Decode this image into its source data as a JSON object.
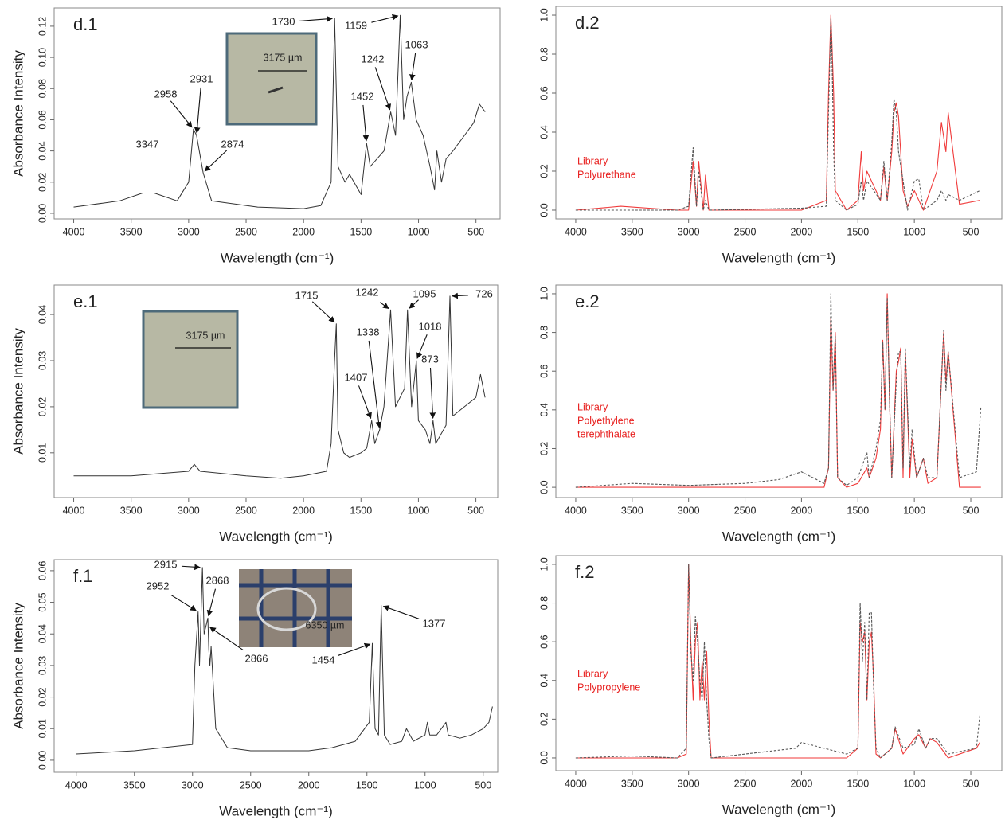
{
  "chart_data": [
    {
      "type": "line",
      "label": "d.1",
      "xlabel": "Wavelength (cm⁻¹)",
      "ylabel": "Absorbance Intensity",
      "inset_scale": "3175 µm",
      "xlim": [
        4170,
        290
      ],
      "ylim": [
        -0.0036,
        0.1317
      ],
      "xticks": [
        4000,
        3500,
        3000,
        2500,
        2000,
        1500,
        1000,
        500
      ],
      "yticks": [
        {
          "value": 0,
          "label": "0.00"
        },
        {
          "value": 0.02,
          "label": "0.02"
        },
        {
          "value": 0.04,
          "label": "0.04"
        },
        {
          "value": 0.06,
          "label": "0.06"
        },
        {
          "value": 0.08,
          "label": "0.08"
        },
        {
          "value": 0.1,
          "label": "0.10"
        },
        {
          "value": 0.12,
          "label": "0.12"
        }
      ],
      "x": [
        4000,
        3600,
        3400,
        3300,
        3100,
        3000,
        2958,
        2931,
        2874,
        2800,
        2400,
        2000,
        1850,
        1760,
        1730,
        1700,
        1640,
        1600,
        1500,
        1452,
        1420,
        1300,
        1242,
        1200,
        1159,
        1130,
        1100,
        1063,
        1020,
        960,
        900,
        860,
        840,
        800,
        760,
        700,
        600,
        520,
        470,
        420
      ],
      "color": "#333333",
      "values": [
        0.004,
        0.008,
        0.013,
        0.013,
        0.008,
        0.02,
        0.054,
        0.05,
        0.026,
        0.008,
        0.004,
        0.003,
        0.005,
        0.02,
        0.125,
        0.03,
        0.02,
        0.025,
        0.012,
        0.045,
        0.03,
        0.04,
        0.065,
        0.05,
        0.127,
        0.06,
        0.075,
        0.084,
        0.06,
        0.05,
        0.03,
        0.015,
        0.04,
        0.02,
        0.035,
        0.04,
        0.05,
        0.058,
        0.07,
        0.065
      ],
      "peak_labels": [
        1730,
        1159,
        1242,
        1063,
        1452,
        2958,
        2931,
        2874,
        3347
      ]
    },
    {
      "type": "line",
      "label": "d.2",
      "xlabel": "Wavelength (cm⁻¹)",
      "library_label": [
        "Library",
        "Polyurethane"
      ],
      "xlim": [
        4176,
        225
      ],
      "ylim": [
        -0.045,
        1.045
      ],
      "xticks": [
        4000,
        3500,
        3000,
        2500,
        2000,
        1500,
        1000,
        500
      ],
      "yticks": [
        {
          "value": 0,
          "label": "0.0"
        },
        0.2,
        0.4,
        0.6,
        0.8,
        {
          "value": 1,
          "label": "1.0"
        }
      ],
      "x": [
        4000,
        3600,
        3100,
        3000,
        2960,
        2930,
        2910,
        2870,
        2850,
        2820,
        2000,
        1780,
        1760,
        1740,
        1730,
        1715,
        1700,
        1600,
        1500,
        1470,
        1450,
        1420,
        1300,
        1270,
        1240,
        1200,
        1180,
        1160,
        1140,
        1100,
        1060,
        1000,
        960,
        920,
        800,
        760,
        720,
        700,
        600,
        420
      ],
      "series": [
        {
          "color": "#f03a3a",
          "values": [
            0,
            0.02,
            0,
            0,
            0.25,
            0.02,
            0.25,
            0,
            0.18,
            0,
            0,
            0.05,
            0.6,
            1,
            0.85,
            0.6,
            0.1,
            0,
            0.05,
            0.3,
            0.1,
            0.2,
            0.05,
            0.22,
            0.05,
            0.3,
            0.5,
            0.55,
            0.48,
            0.1,
            0.02,
            0.1,
            0.05,
            0,
            0.2,
            0.45,
            0.3,
            0.5,
            0.03,
            0.05
          ]
        },
        {
          "color": "#555555",
          "dashed": true,
          "values": [
            0,
            0,
            0,
            0.02,
            0.32,
            0.02,
            0.2,
            0,
            0.05,
            0,
            0.01,
            0.02,
            0.5,
            0.98,
            0.8,
            0.3,
            0.05,
            0,
            0.03,
            0.15,
            0.05,
            0.15,
            0.05,
            0.25,
            0.05,
            0.35,
            0.57,
            0.5,
            0.3,
            0.15,
            0,
            0.15,
            0.16,
            0,
            0.05,
            0.1,
            0.05,
            0.08,
            0.05,
            0.1
          ]
        }
      ]
    },
    {
      "type": "line",
      "label": "e.1",
      "xlabel": "Wavelength (cm⁻¹)",
      "ylabel": "Absorbance Intensity",
      "inset_scale": "3175 µm",
      "xlim": [
        4170,
        310
      ],
      "ylim": [
        0.0003,
        0.0464
      ],
      "xticks": [
        4000,
        3500,
        3000,
        2500,
        2000,
        1500,
        1000,
        500
      ],
      "yticks": [
        0.01,
        0.02,
        0.03,
        0.04
      ],
      "x": [
        4000,
        3500,
        3000,
        2950,
        2900,
        2500,
        2200,
        2000,
        1800,
        1760,
        1730,
        1715,
        1700,
        1650,
        1600,
        1500,
        1450,
        1407,
        1380,
        1338,
        1300,
        1242,
        1200,
        1160,
        1120,
        1095,
        1060,
        1018,
        1000,
        940,
        900,
        873,
        850,
        760,
        726,
        700,
        600,
        500,
        460,
        420
      ],
      "color": "#333333",
      "values": [
        0.005,
        0.005,
        0.006,
        0.0075,
        0.006,
        0.005,
        0.0045,
        0.005,
        0.006,
        0.012,
        0.03,
        0.038,
        0.015,
        0.01,
        0.009,
        0.01,
        0.011,
        0.017,
        0.012,
        0.015,
        0.02,
        0.041,
        0.02,
        0.022,
        0.024,
        0.041,
        0.02,
        0.03,
        0.017,
        0.015,
        0.012,
        0.017,
        0.012,
        0.016,
        0.044,
        0.018,
        0.02,
        0.022,
        0.027,
        0.022
      ],
      "peak_labels": [
        1715,
        1242,
        1095,
        726,
        1338,
        1407,
        1018,
        873
      ]
    },
    {
      "type": "line",
      "label": "e.2",
      "xlabel": "Wavelength (cm⁻¹)",
      "library_label": [
        "Library",
        "Polyethylene",
        "terephthalate"
      ],
      "xlim": [
        4176,
        225
      ],
      "ylim": [
        -0.053,
        1.045
      ],
      "xticks": [
        4000,
        3500,
        3000,
        2500,
        2000,
        1500,
        1000,
        500
      ],
      "yticks": [
        {
          "value": 0,
          "label": "0.0"
        },
        0.2,
        0.4,
        0.6,
        0.8,
        {
          "value": 1,
          "label": "1.0"
        }
      ],
      "x": [
        4000,
        3500,
        3000,
        2500,
        2200,
        2000,
        1800,
        1760,
        1740,
        1720,
        1700,
        1680,
        1600,
        1500,
        1420,
        1400,
        1340,
        1300,
        1280,
        1260,
        1240,
        1220,
        1200,
        1160,
        1140,
        1120,
        1100,
        1080,
        1040,
        1020,
        980,
        920,
        880,
        800,
        740,
        720,
        700,
        600,
        450,
        410
      ],
      "series": [
        {
          "color": "#f03a3a",
          "values": [
            0,
            0,
            0,
            0,
            0,
            0,
            0,
            0.1,
            0.88,
            0.5,
            0.8,
            0.05,
            0,
            0.02,
            0.1,
            0.05,
            0.15,
            0.3,
            0.76,
            0.4,
            1,
            0.45,
            0.05,
            0.6,
            0.65,
            0.72,
            0.05,
            0.7,
            0.05,
            0.25,
            0.05,
            0.15,
            0.02,
            0.05,
            0.8,
            0.55,
            0.7,
            0,
            0,
            0
          ]
        },
        {
          "color": "#555555",
          "dashed": true,
          "values": [
            0,
            0.02,
            0.01,
            0.02,
            0.04,
            0.08,
            0.02,
            0.1,
            1,
            0.5,
            0.78,
            0.05,
            0.01,
            0.05,
            0.18,
            0.05,
            0.2,
            0.35,
            0.75,
            0.4,
            0.98,
            0.45,
            0.05,
            0.55,
            0.7,
            0.7,
            0.1,
            0.72,
            0.1,
            0.3,
            0.05,
            0.15,
            0.05,
            0.05,
            0.81,
            0.5,
            0.7,
            0.05,
            0.08,
            0.42
          ]
        }
      ]
    },
    {
      "type": "line",
      "label": "f.1",
      "xlabel": "Wavelength (cm⁻¹)",
      "ylabel": "Absorbance Intensity",
      "inset_scale": "6350 µm",
      "xlim": [
        4190,
        375
      ],
      "ylim": [
        -0.0038,
        0.0635
      ],
      "xticks": [
        4000,
        3500,
        3000,
        2500,
        2000,
        1500,
        1000,
        500
      ],
      "yticks": [
        {
          "value": 0,
          "label": "0.00"
        },
        0.01,
        0.02,
        0.03,
        0.04,
        0.05,
        0.06
      ],
      "x": [
        4000,
        3500,
        3000,
        2980,
        2952,
        2940,
        2915,
        2900,
        2868,
        2860,
        2850,
        2840,
        2800,
        2700,
        2500,
        2000,
        1800,
        1600,
        1480,
        1454,
        1430,
        1400,
        1377,
        1350,
        1300,
        1200,
        1160,
        1100,
        1000,
        980,
        960,
        900,
        860,
        820,
        800,
        700,
        600,
        500,
        450,
        420
      ],
      "color": "#333333",
      "values": [
        0.002,
        0.003,
        0.005,
        0.03,
        0.047,
        0.03,
        0.061,
        0.04,
        0.045,
        0.035,
        0.03,
        0.036,
        0.01,
        0.004,
        0.003,
        0.003,
        0.004,
        0.006,
        0.012,
        0.037,
        0.01,
        0.008,
        0.049,
        0.008,
        0.005,
        0.006,
        0.01,
        0.006,
        0.008,
        0.012,
        0.008,
        0.008,
        0.01,
        0.012,
        0.008,
        0.007,
        0.008,
        0.01,
        0.012,
        0.017
      ],
      "peak_labels": [
        2915,
        2952,
        2868,
        2866,
        1454,
        1377
      ]
    },
    {
      "type": "line",
      "label": "f.2",
      "xlabel": "Wavelength (cm⁻¹)",
      "library_label": [
        "Library",
        "Polypropylene"
      ],
      "xlim": [
        4176,
        225
      ],
      "ylim": [
        -0.066,
        1.045
      ],
      "xticks": [
        4000,
        3500,
        3000,
        2500,
        2000,
        1500,
        1000,
        500
      ],
      "yticks": [
        {
          "value": 0,
          "label": "0.0"
        },
        0.2,
        0.4,
        0.6,
        0.8,
        {
          "value": 1,
          "label": "1.0"
        }
      ],
      "x": [
        4000,
        3500,
        3100,
        3020,
        3000,
        2980,
        2960,
        2940,
        2920,
        2900,
        2880,
        2860,
        2840,
        2820,
        2800,
        2500,
        2050,
        2000,
        1600,
        1500,
        1480,
        1460,
        1440,
        1420,
        1400,
        1380,
        1360,
        1340,
        1300,
        1200,
        1170,
        1100,
        1000,
        960,
        900,
        860,
        800,
        700,
        450,
        420
      ],
      "series": [
        {
          "color": "#f03a3a",
          "values": [
            0,
            0,
            0,
            0.02,
            1,
            0.6,
            0.3,
            0.6,
            0.7,
            0.3,
            0.5,
            0.3,
            0.55,
            0.2,
            0,
            0,
            0,
            0,
            0,
            0.05,
            0.7,
            0.6,
            0.65,
            0.3,
            0.6,
            0.65,
            0.4,
            0.02,
            0,
            0.05,
            0.15,
            0.02,
            0.1,
            0.12,
            0.05,
            0.1,
            0.08,
            0,
            0.05,
            0.08
          ]
        },
        {
          "color": "#555555",
          "dashed": true,
          "values": [
            0,
            0.01,
            0,
            0.05,
            1,
            0.55,
            0.4,
            0.73,
            0.6,
            0.4,
            0.3,
            0.6,
            0.3,
            0.1,
            0,
            0.02,
            0.05,
            0.08,
            0.02,
            0.05,
            0.8,
            0.5,
            0.7,
            0.3,
            0.75,
            0.75,
            0.35,
            0.05,
            0,
            0.05,
            0.16,
            0.05,
            0.07,
            0.15,
            0.05,
            0.1,
            0.1,
            0.02,
            0.05,
            0.22
          ]
        }
      ]
    }
  ]
}
